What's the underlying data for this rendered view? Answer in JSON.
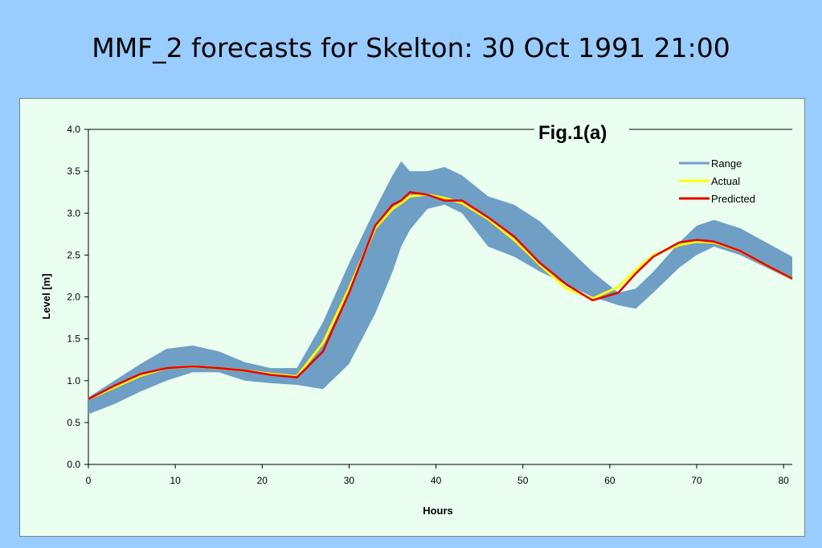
{
  "slide": {
    "title": "MMF_2 forecasts for Skelton: 30 Oct 1991 21:00"
  },
  "colors": {
    "background": "#99ccff",
    "plot_bg": "#eafff0",
    "range": "#6f9fc4",
    "actual": "#ffff00",
    "predicted": "#e60000"
  },
  "chart_data": {
    "type": "area",
    "annotation": "Fig.1(a)",
    "xlabel": "Hours",
    "ylabel": "Level [m]",
    "xlim": [
      0,
      81
    ],
    "ylim": [
      0,
      4
    ],
    "xticks": [
      0,
      10,
      20,
      30,
      40,
      50,
      60,
      70,
      80
    ],
    "yticks": [
      "0.0",
      "0.5",
      "1.0",
      "1.5",
      "2.0",
      "2.5",
      "3.0",
      "3.5",
      "4.0"
    ],
    "grid": false,
    "legend": "top-right",
    "x": [
      0,
      3,
      6,
      9,
      12,
      15,
      18,
      21,
      24,
      27,
      30,
      33,
      35,
      36,
      37,
      39,
      41,
      43,
      46,
      49,
      52,
      55,
      58,
      61,
      63,
      65,
      68,
      70,
      72,
      75,
      78,
      81
    ],
    "series": [
      {
        "name": "Range",
        "kind": "band",
        "upper": [
          0.8,
          1.0,
          1.2,
          1.38,
          1.42,
          1.35,
          1.22,
          1.15,
          1.15,
          1.7,
          2.4,
          3.05,
          3.45,
          3.62,
          3.5,
          3.5,
          3.55,
          3.45,
          3.2,
          3.1,
          2.9,
          2.6,
          2.3,
          2.05,
          2.1,
          2.3,
          2.65,
          2.85,
          2.92,
          2.82,
          2.65,
          2.48
        ],
        "lower": [
          0.6,
          0.72,
          0.87,
          1.0,
          1.1,
          1.1,
          1.0,
          0.97,
          0.95,
          0.9,
          1.2,
          1.8,
          2.3,
          2.6,
          2.8,
          3.05,
          3.1,
          3.0,
          2.6,
          2.48,
          2.3,
          2.15,
          2.0,
          1.9,
          1.86,
          2.05,
          2.35,
          2.5,
          2.6,
          2.5,
          2.35,
          2.2
        ]
      },
      {
        "name": "Actual",
        "values": [
          0.78,
          0.92,
          1.06,
          1.15,
          1.17,
          1.15,
          1.12,
          1.08,
          1.05,
          1.45,
          2.1,
          2.82,
          3.05,
          3.12,
          3.2,
          3.22,
          3.18,
          3.12,
          2.93,
          2.68,
          2.38,
          2.1,
          1.98,
          2.12,
          2.32,
          2.5,
          2.62,
          2.66,
          2.65,
          2.55,
          2.38,
          2.22
        ]
      },
      {
        "name": "Predicted",
        "values": [
          0.78,
          0.94,
          1.08,
          1.15,
          1.17,
          1.15,
          1.12,
          1.07,
          1.04,
          1.35,
          2.05,
          2.85,
          3.1,
          3.15,
          3.25,
          3.22,
          3.15,
          3.15,
          2.95,
          2.72,
          2.4,
          2.15,
          1.96,
          2.05,
          2.28,
          2.48,
          2.65,
          2.68,
          2.66,
          2.55,
          2.38,
          2.22
        ]
      }
    ]
  }
}
